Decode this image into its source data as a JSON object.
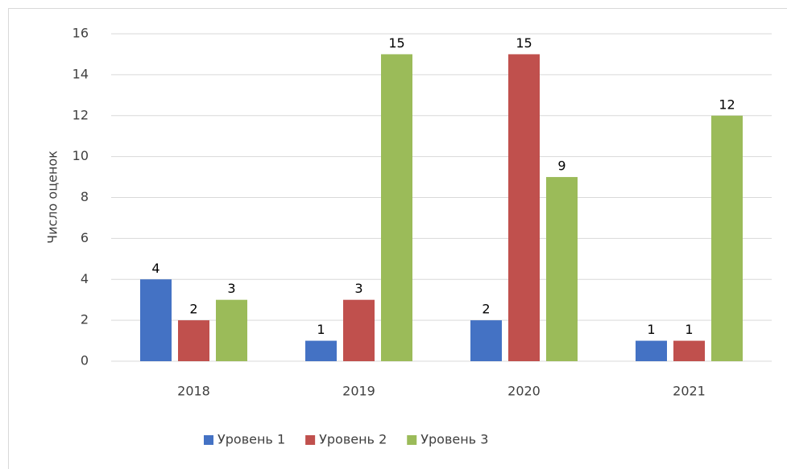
{
  "chart_data": {
    "type": "bar",
    "y_label": "Число оценок",
    "categories": [
      "2018",
      "2019",
      "2020",
      "2021"
    ],
    "series": [
      {
        "name": "Уровень 1",
        "color": "#4472c4",
        "values": [
          4,
          1,
          2,
          1
        ]
      },
      {
        "name": "Уровень 2",
        "color": "#c0504d",
        "values": [
          2,
          3,
          15,
          1
        ]
      },
      {
        "name": "Уровень 3",
        "color": "#9bbb59",
        "values": [
          3,
          15,
          9,
          12
        ]
      }
    ],
    "ylim": [
      0,
      16
    ],
    "yticks": [
      0,
      2,
      4,
      6,
      8,
      10,
      12,
      14,
      16
    ],
    "grid": true,
    "legend": "bottom"
  }
}
